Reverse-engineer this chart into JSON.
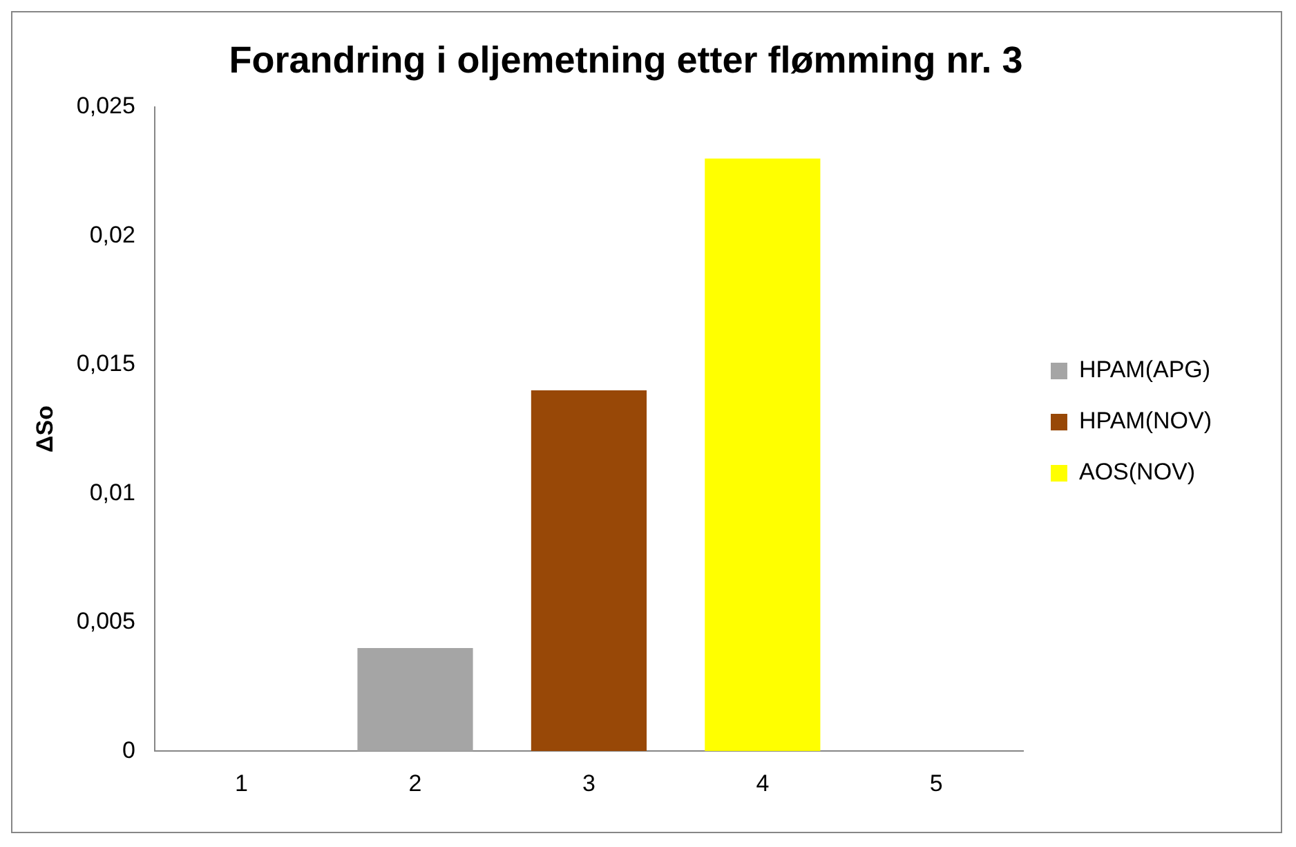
{
  "chart_data": {
    "type": "bar",
    "title": "Forandring i oljemetning etter flømming nr. 3",
    "ylabel": "ΔSo",
    "categories": [
      "1",
      "2",
      "3",
      "4",
      "5"
    ],
    "stacked": true,
    "series": [
      {
        "name": "HPAM(APG)",
        "color": "#a5a5a5",
        "values": [
          null,
          0.004,
          null,
          null,
          null
        ]
      },
      {
        "name": "HPAM(NOV)",
        "color": "#984807",
        "values": [
          null,
          null,
          0.014,
          null,
          null
        ]
      },
      {
        "name": "AOS(NOV)",
        "color": "#ffff00",
        "values": [
          null,
          null,
          null,
          0.023,
          null
        ]
      }
    ],
    "ylim": [
      0,
      0.025
    ],
    "yticks": [
      0,
      {
        "value": 0.005,
        "label": "0,005"
      },
      {
        "value": 0.01,
        "label": "0,01"
      },
      {
        "value": 0.015,
        "label": "0,015"
      },
      {
        "value": 0.02,
        "label": "0,02"
      },
      {
        "value": 0.025,
        "label": "0,025"
      }
    ],
    "grid": false,
    "legend": "right"
  }
}
